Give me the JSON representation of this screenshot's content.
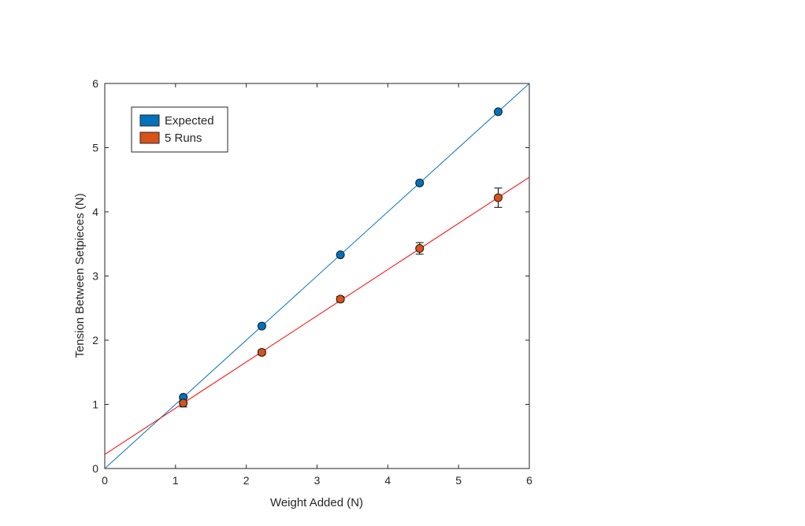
{
  "chart_data": {
    "type": "scatter",
    "title": "",
    "xlabel": "Weight Added (N)",
    "ylabel": "Tension Between Setpieces (N)",
    "xlim": [
      0,
      6
    ],
    "ylim": [
      0,
      6
    ],
    "xticks": [
      0,
      1,
      2,
      3,
      4,
      5,
      6
    ],
    "yticks": [
      0,
      1,
      2,
      3,
      4,
      5,
      6
    ],
    "grid": false,
    "legend_position": "top-left",
    "series": [
      {
        "name": "Expected",
        "color": "#0072BD",
        "x": [
          1.11,
          2.22,
          3.33,
          4.45,
          5.56
        ],
        "y": [
          1.11,
          2.22,
          3.33,
          4.45,
          5.56
        ],
        "fit": {
          "slope": 1.0,
          "intercept": 0.0,
          "color": "#0072BD"
        }
      },
      {
        "name": "5 Runs",
        "color": "#D95319",
        "x": [
          1.11,
          2.22,
          3.33,
          4.45,
          5.56
        ],
        "y": [
          1.02,
          1.81,
          2.64,
          3.43,
          4.22
        ],
        "error": [
          0.06,
          0.04,
          0.04,
          0.09,
          0.15
        ],
        "fit": {
          "slope": 0.72,
          "intercept": 0.22,
          "color": "#FF0000"
        }
      }
    ]
  }
}
